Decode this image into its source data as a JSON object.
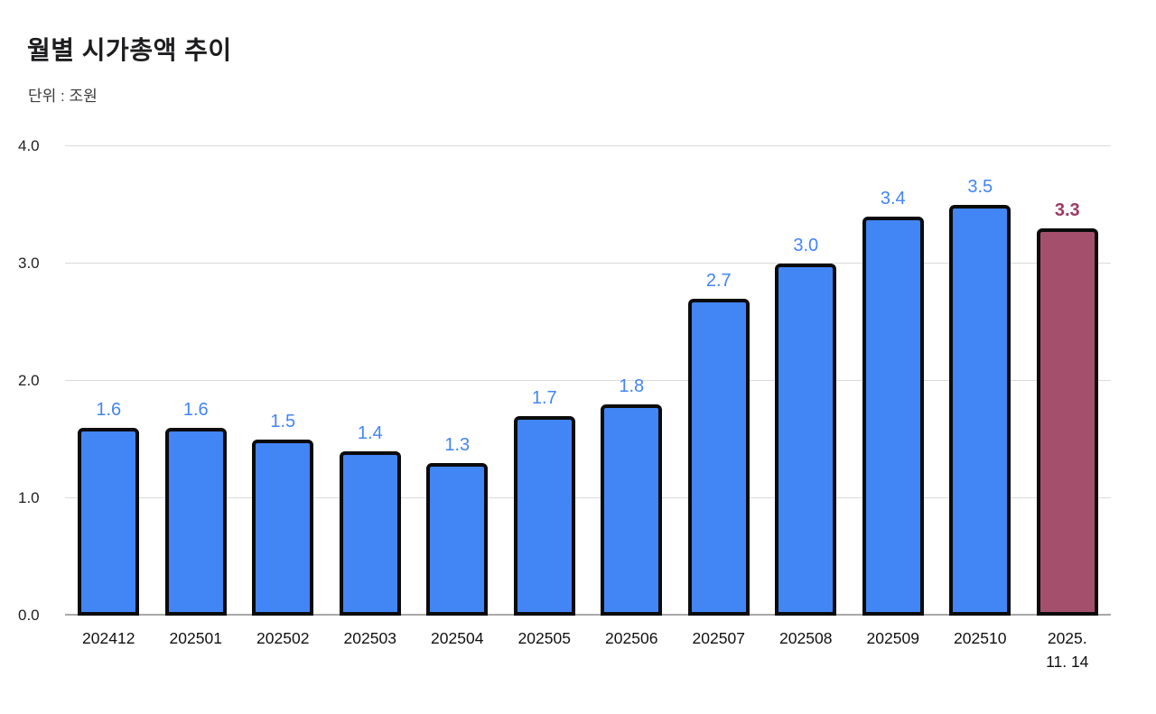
{
  "header": {
    "title": "월별 시가총액 추이",
    "subtitle": "단위 : 조원"
  },
  "chart_data": {
    "type": "bar",
    "title": "월별 시가총액 추이",
    "unit_label": "단위 : 조원",
    "categories": [
      "202412",
      "202501",
      "202502",
      "202503",
      "202504",
      "202505",
      "202506",
      "202507",
      "202508",
      "202509",
      "202510",
      "2025.\n11. 14"
    ],
    "values": [
      1.6,
      1.6,
      1.5,
      1.4,
      1.3,
      1.7,
      1.8,
      2.7,
      3.0,
      3.4,
      3.5,
      3.3
    ],
    "highlight_index": 11,
    "xlabel": "",
    "ylabel": "",
    "ylim": [
      0,
      4
    ],
    "yticks": [
      0,
      1,
      2,
      3,
      4
    ],
    "grid": "horizontal",
    "legend": "none",
    "colors": {
      "bar": "#4285F4",
      "bar_border": "#0B0B0B",
      "highlight_bar": "#A4506C",
      "value_label": "#4285F4",
      "highlight_value_label": "#9C3A64",
      "gridline": "#DBDBDB",
      "zero_line": "#A8A8A8",
      "axis_text": "#1F1F1F"
    }
  }
}
